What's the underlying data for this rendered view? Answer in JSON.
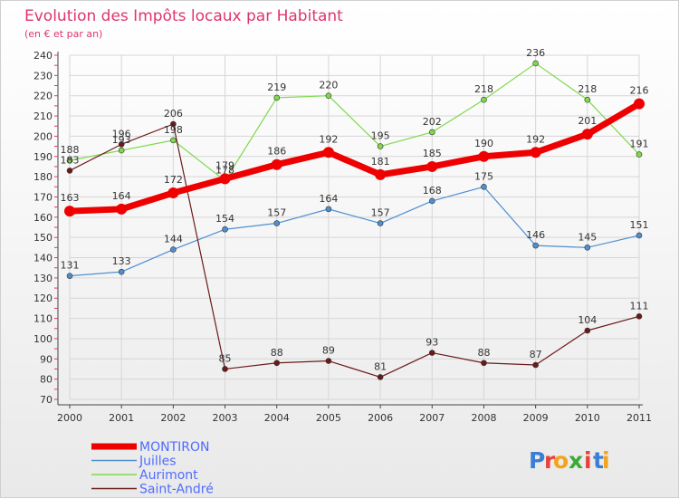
{
  "chart_data": {
    "type": "line",
    "title": "Evolution des Impôts locaux par Habitant",
    "subtitle": "(en € et par an)",
    "xlabel": "",
    "ylabel": "",
    "ylim": [
      70,
      240
    ],
    "yticks": [
      70,
      80,
      90,
      100,
      110,
      120,
      130,
      140,
      150,
      160,
      170,
      180,
      190,
      200,
      210,
      220,
      230,
      240
    ],
    "categories": [
      "2000",
      "2001",
      "2002",
      "2003",
      "2004",
      "2005",
      "2006",
      "2007",
      "2008",
      "2009",
      "2010",
      "2011"
    ],
    "grid": true,
    "legend_position": "bottom-left",
    "series": [
      {
        "name": "Juilles",
        "color": "#4f8fd0",
        "values": [
          131,
          133,
          144,
          154,
          157,
          164,
          157,
          168,
          175,
          146,
          145,
          151
        ]
      },
      {
        "name": "Aurimont",
        "color": "#7fd94a",
        "values": [
          188,
          193,
          198,
          178,
          219,
          220,
          195,
          202,
          218,
          236,
          218,
          191
        ]
      },
      {
        "name": "Saint-André",
        "color": "#6b1a1a",
        "values": [
          183,
          196,
          206,
          85,
          88,
          89,
          81,
          93,
          88,
          87,
          104,
          111
        ]
      },
      {
        "name": "MONTIRON",
        "color": "#ee0000",
        "values": [
          163,
          164,
          172,
          179,
          186,
          192,
          181,
          185,
          190,
          192,
          201,
          216
        ]
      }
    ],
    "legend": [
      "MONTIRON",
      "Juilles",
      "Aurimont",
      "Saint-André"
    ]
  },
  "logo": {
    "text": "Proxiti",
    "letters": [
      "P",
      "r",
      "o",
      "x",
      "i",
      "t",
      "i"
    ],
    "colors": [
      "#3a7fd5",
      "#e8413a",
      "#f3a21b",
      "#3aaa35",
      "#e8413a",
      "#3a7fd5",
      "#f3a21b"
    ]
  }
}
